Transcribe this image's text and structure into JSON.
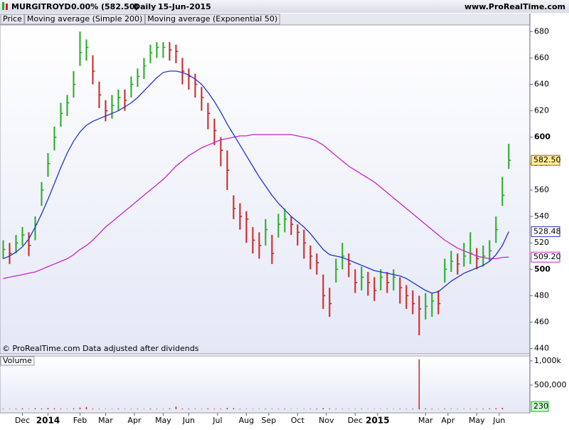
{
  "header": {
    "symbol": "MURGITROYD",
    "change": "0.00% (582.50)",
    "period": "Daily",
    "date": "15-Jun-2015",
    "site": "www.ProRealTime.com"
  },
  "chart_data": [
    {
      "type": "ohlc",
      "price_label": "Price",
      "up_color": "#22aa22",
      "down_color": "#cc2222",
      "note": "© ProRealTime.com Data adjusted after dividends",
      "x": [
        0,
        1,
        2,
        3,
        4,
        5,
        6,
        7,
        8,
        9,
        10,
        11,
        12,
        13,
        14,
        15,
        16,
        17,
        18,
        19,
        20,
        21,
        22,
        23,
        24,
        25,
        26,
        27,
        28,
        29,
        30,
        31,
        32,
        33,
        34,
        35,
        36,
        37,
        38,
        39,
        40,
        41,
        42,
        43,
        44,
        45,
        46,
        47,
        48,
        49,
        50,
        51,
        52,
        53,
        54,
        55,
        56,
        57,
        58,
        59,
        60,
        61,
        62,
        63,
        64,
        65,
        66,
        67,
        68,
        69,
        70,
        71,
        72,
        73,
        74,
        75,
        76,
        77,
        78,
        79
      ],
      "high": [
        522,
        520,
        526,
        532,
        528,
        540,
        566,
        588,
        608,
        626,
        632,
        650,
        680,
        674,
        662,
        642,
        628,
        632,
        636,
        636,
        646,
        652,
        660,
        670,
        672,
        672,
        672,
        670,
        660,
        652,
        648,
        638,
        626,
        614,
        600,
        590,
        556,
        550,
        544,
        532,
        528,
        538,
        526,
        542,
        546,
        540,
        534,
        530,
        518,
        512,
        496,
        486,
        508,
        520,
        512,
        500,
        502,
        498,
        494,
        500,
        498,
        500,
        494,
        488,
        484,
        480,
        482,
        482,
        484,
        508,
        514,
        512,
        520,
        528,
        516,
        518,
        522,
        540,
        570,
        595
      ],
      "low": [
        508,
        504,
        512,
        518,
        510,
        522,
        548,
        570,
        590,
        608,
        616,
        630,
        654,
        658,
        640,
        622,
        612,
        614,
        620,
        620,
        630,
        638,
        644,
        656,
        660,
        660,
        658,
        656,
        640,
        636,
        630,
        620,
        606,
        594,
        578,
        560,
        538,
        530,
        520,
        512,
        508,
        518,
        504,
        524,
        528,
        526,
        518,
        508,
        500,
        496,
        470,
        464,
        490,
        500,
        494,
        482,
        484,
        480,
        476,
        484,
        482,
        484,
        474,
        470,
        466,
        450,
        462,
        464,
        466,
        490,
        498,
        496,
        502,
        504,
        500,
        502,
        506,
        520,
        548,
        576
      ],
      "close": [
        515,
        512,
        520,
        526,
        518,
        534,
        560,
        580,
        600,
        618,
        626,
        640,
        664,
        668,
        650,
        632,
        620,
        624,
        630,
        628,
        640,
        646,
        654,
        664,
        668,
        668,
        666,
        665,
        650,
        646,
        640,
        630,
        618,
        605,
        590,
        575,
        546,
        540,
        538,
        522,
        518,
        530,
        512,
        534,
        538,
        534,
        528,
        520,
        510,
        505,
        480,
        474,
        500,
        510,
        504,
        490,
        494,
        490,
        484,
        494,
        490,
        494,
        486,
        480,
        474,
        470,
        472,
        476,
        474,
        500,
        506,
        504,
        510,
        512,
        508,
        510,
        514,
        530,
        556,
        582.5
      ],
      "series": [
        {
          "name": "Moving average (Simple 200)",
          "color": "#cc22cc",
          "values": [
            493,
            494,
            495,
            496,
            497,
            498,
            500,
            502,
            504,
            506,
            508,
            511,
            515,
            518,
            522,
            527,
            532,
            536,
            540,
            544,
            548,
            552,
            556,
            560,
            564,
            568,
            573,
            578,
            582,
            586,
            589,
            592,
            594,
            596,
            598,
            599,
            600,
            601,
            601,
            602,
            602,
            602,
            602,
            602,
            602,
            602,
            601,
            600,
            599,
            597,
            594,
            590,
            586,
            582,
            578,
            575,
            572,
            569,
            566,
            562,
            558,
            554,
            550,
            546,
            542,
            538,
            534,
            530,
            526,
            522,
            519,
            516,
            514,
            512,
            510,
            509,
            508,
            508,
            509,
            509.2
          ]
        },
        {
          "name": "Moving average (Exponential 50)",
          "color": "#2233cc",
          "values": [
            508,
            510,
            513,
            517,
            523,
            532,
            542,
            553,
            565,
            577,
            588,
            597,
            604,
            609,
            612,
            614,
            616,
            618,
            620,
            623,
            626,
            630,
            635,
            640,
            645,
            649,
            650,
            650,
            649,
            647,
            644,
            640,
            634,
            627,
            619,
            610,
            602,
            594,
            586,
            578,
            570,
            563,
            556,
            550,
            545,
            540,
            536,
            532,
            527,
            521,
            515,
            511,
            510,
            509,
            507,
            505,
            503,
            501,
            499,
            498,
            497,
            496,
            495,
            493,
            490,
            487,
            484,
            482,
            483,
            487,
            491,
            494,
            497,
            499,
            501,
            503,
            506,
            511,
            518,
            528.48
          ]
        }
      ],
      "price_badges": [
        {
          "value": 582.5,
          "label": "582.50",
          "color": "#996600",
          "background": "#ffee99"
        },
        {
          "value": 528.48,
          "label": "528.48",
          "color": "#2233cc",
          "background": "#ffffff"
        },
        {
          "value": 509.2,
          "label": "509.20",
          "color": "#cc22cc",
          "background": "#ffffff"
        }
      ],
      "xlim": [
        -0.5,
        82.3
      ],
      "ylim": [
        436,
        685
      ],
      "yticks": [
        440,
        460,
        480,
        500,
        520,
        540,
        560,
        580,
        600,
        620,
        640,
        660,
        680
      ],
      "grid": false
    },
    {
      "type": "bar",
      "title": "Volume",
      "color": "#cc2222",
      "x": [
        0,
        1,
        2,
        3,
        4,
        5,
        6,
        7,
        8,
        9,
        10,
        11,
        12,
        13,
        14,
        15,
        16,
        17,
        18,
        19,
        20,
        21,
        22,
        23,
        24,
        25,
        26,
        27,
        28,
        29,
        30,
        31,
        32,
        33,
        34,
        35,
        36,
        37,
        38,
        39,
        40,
        41,
        42,
        43,
        44,
        45,
        46,
        47,
        48,
        49,
        50,
        51,
        52,
        53,
        54,
        55,
        56,
        57,
        58,
        59,
        60,
        61,
        62,
        63,
        64,
        65,
        66,
        67,
        68,
        69,
        70,
        71,
        72,
        73,
        74,
        75,
        76,
        77,
        78,
        79
      ],
      "values": [
        12000,
        8000,
        15000,
        20000,
        10000,
        25000,
        18000,
        30000,
        22000,
        15000,
        10000,
        20000,
        35000,
        50000,
        15000,
        12000,
        10000,
        8000,
        14000,
        9000,
        11000,
        13000,
        10000,
        16000,
        12000,
        9000,
        20000,
        60000,
        18000,
        15000,
        12000,
        10000,
        20000,
        15000,
        14000,
        30000,
        25000,
        12000,
        10000,
        8000,
        9000,
        15000,
        11000,
        10000,
        12000,
        8000,
        7000,
        9000,
        10000,
        14000,
        25000,
        18000,
        12000,
        10000,
        8000,
        9000,
        11000,
        7000,
        6000,
        9000,
        10000,
        8000,
        12000,
        9000,
        15000,
        1030000,
        20000,
        12000,
        8000,
        15000,
        10000,
        9000,
        11000,
        10000,
        12000,
        14000,
        20000,
        25000,
        30000,
        230
      ],
      "xlim": [
        -0.5,
        82.3
      ],
      "ylim": [
        0,
        1100000
      ],
      "yticks": [
        {
          "value": 1000000,
          "label": "1,000k"
        },
        {
          "value": 500000,
          "label": "500,000"
        }
      ],
      "xticks": [
        {
          "value": 3,
          "label": "Dec"
        },
        {
          "value": 7,
          "label": "2014"
        },
        {
          "value": 12,
          "label": "Feb"
        },
        {
          "value": 16,
          "label": "Mar"
        },
        {
          "value": 20.5,
          "label": "Apr"
        },
        {
          "value": 25,
          "label": "May"
        },
        {
          "value": 29,
          "label": "Jun"
        },
        {
          "value": 33.5,
          "label": "Jul"
        },
        {
          "value": 38,
          "label": "Aug"
        },
        {
          "value": 41.5,
          "label": "Sep"
        },
        {
          "value": 46,
          "label": "Oct"
        },
        {
          "value": 50.5,
          "label": "Nov"
        },
        {
          "value": 55,
          "label": "Dec"
        },
        {
          "value": 58.5,
          "label": "2015"
        },
        {
          "value": 66,
          "label": "Mar"
        },
        {
          "value": 69.5,
          "label": "Apr"
        },
        {
          "value": 74,
          "label": "May"
        },
        {
          "value": 77.5,
          "label": "Jun"
        }
      ]
    }
  ]
}
